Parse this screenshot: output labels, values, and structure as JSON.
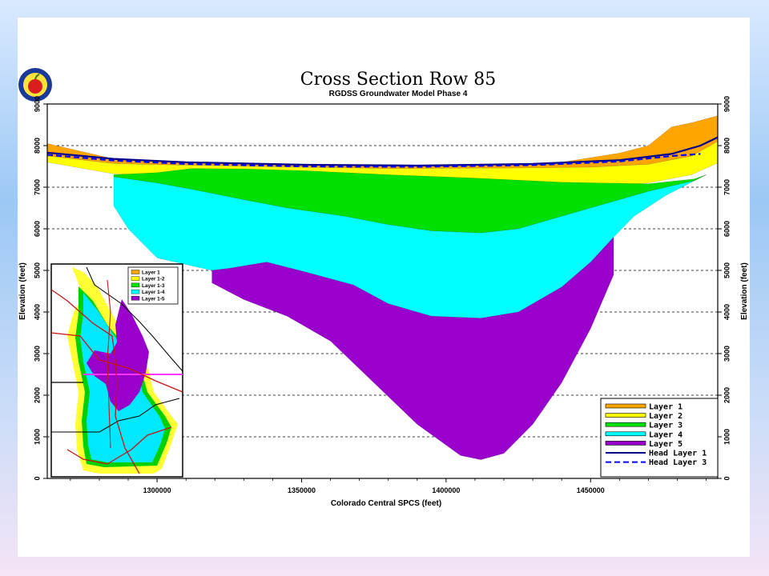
{
  "chart_data": {
    "type": "area",
    "title": "Cross Section Row 85",
    "subtitle": "RGDSS Groundwater Model Phase 4",
    "xlabel": "Colorado Central SPCS (feet)",
    "ylabel_left": "Elevation (feet)",
    "ylabel_right": "Elevation (feet)",
    "xlim": [
      1262000,
      1494000
    ],
    "ylim": [
      0,
      9000
    ],
    "x_ticks": [
      1300000,
      1350000,
      1400000,
      1450000
    ],
    "y_ticks": [
      0,
      1000,
      2000,
      3000,
      4000,
      5000,
      6000,
      7000,
      8000,
      9000
    ],
    "grid": "horizontal dashed",
    "legend_position": "bottom-right",
    "series": [
      {
        "name": "Layer 1",
        "color": "#ffa500",
        "top": [
          [
            1262000,
            8050
          ],
          [
            1285000,
            7680
          ],
          [
            1310000,
            7600
          ],
          [
            1350000,
            7520
          ],
          [
            1380000,
            7500
          ],
          [
            1410000,
            7520
          ],
          [
            1440000,
            7600
          ],
          [
            1460000,
            7820
          ],
          [
            1470000,
            8000
          ],
          [
            1478000,
            8450
          ],
          [
            1485000,
            8550
          ],
          [
            1494000,
            8720
          ]
        ],
        "bottom": [
          [
            1494000,
            8100
          ],
          [
            1485000,
            7750
          ],
          [
            1470000,
            7550
          ],
          [
            1450000,
            7480
          ],
          [
            1420000,
            7460
          ],
          [
            1380000,
            7450
          ],
          [
            1350000,
            7480
          ],
          [
            1320000,
            7520
          ],
          [
            1300000,
            7540
          ],
          [
            1285000,
            7570
          ],
          [
            1262000,
            7750
          ]
        ]
      },
      {
        "name": "Layer 2",
        "color": "#ffff00",
        "top": [
          [
            1262000,
            7750
          ],
          [
            1285000,
            7570
          ],
          [
            1300000,
            7540
          ],
          [
            1320000,
            7520
          ],
          [
            1350000,
            7480
          ],
          [
            1380000,
            7450
          ],
          [
            1420000,
            7460
          ],
          [
            1450000,
            7480
          ],
          [
            1470000,
            7550
          ],
          [
            1485000,
            7750
          ],
          [
            1494000,
            8100
          ]
        ],
        "bottom": [
          [
            1494000,
            7580
          ],
          [
            1485000,
            7300
          ],
          [
            1470000,
            7100
          ],
          [
            1450000,
            7020
          ],
          [
            1420000,
            7000
          ],
          [
            1390000,
            7100
          ],
          [
            1360000,
            7200
          ],
          [
            1330000,
            7250
          ],
          [
            1300000,
            7300
          ],
          [
            1285000,
            7320
          ],
          [
            1262000,
            7600
          ]
        ]
      },
      {
        "name": "Layer 3",
        "color": "#00e000",
        "top": [
          [
            1285000,
            7300
          ],
          [
            1300000,
            7350
          ],
          [
            1312000,
            7450
          ],
          [
            1330000,
            7440
          ],
          [
            1350000,
            7400
          ],
          [
            1380000,
            7300
          ],
          [
            1410000,
            7220
          ],
          [
            1440000,
            7120
          ],
          [
            1470000,
            7080
          ],
          [
            1486000,
            7200
          ],
          [
            1490000,
            7300
          ]
        ],
        "bottom": [
          [
            1490000,
            7300
          ],
          [
            1486000,
            7160
          ],
          [
            1470000,
            6900
          ],
          [
            1455000,
            6600
          ],
          [
            1440000,
            6300
          ],
          [
            1425000,
            6000
          ],
          [
            1412000,
            5900
          ],
          [
            1395000,
            5950
          ],
          [
            1380000,
            6100
          ],
          [
            1365000,
            6300
          ],
          [
            1345000,
            6500
          ],
          [
            1330000,
            6700
          ],
          [
            1312000,
            6950
          ],
          [
            1300000,
            7100
          ],
          [
            1285000,
            7250
          ]
        ]
      },
      {
        "name": "Layer 4",
        "color": "#00ffff",
        "top": [
          [
            1285000,
            7250
          ],
          [
            1300000,
            7100
          ],
          [
            1312000,
            6950
          ],
          [
            1330000,
            6700
          ],
          [
            1345000,
            6500
          ],
          [
            1365000,
            6300
          ],
          [
            1380000,
            6100
          ],
          [
            1395000,
            5950
          ],
          [
            1412000,
            5900
          ],
          [
            1425000,
            6000
          ],
          [
            1440000,
            6300
          ],
          [
            1455000,
            6600
          ],
          [
            1470000,
            6900
          ],
          [
            1486000,
            7160
          ],
          [
            1490000,
            7300
          ]
        ],
        "bottom": [
          [
            1490000,
            7300
          ],
          [
            1476000,
            6800
          ],
          [
            1465000,
            6300
          ],
          [
            1458000,
            5800
          ],
          [
            1450000,
            5200
          ],
          [
            1440000,
            4600
          ],
          [
            1425000,
            4000
          ],
          [
            1412000,
            3850
          ],
          [
            1395000,
            3900
          ],
          [
            1380000,
            4000
          ],
          [
            1368000,
            4250
          ],
          [
            1352000,
            4450
          ],
          [
            1338000,
            5200
          ],
          [
            1325000,
            5050
          ],
          [
            1319000,
            5000
          ],
          [
            1300000,
            5300
          ],
          [
            1290000,
            6000
          ],
          [
            1285000,
            6550
          ]
        ]
      },
      {
        "name": "Layer 5",
        "color": "#9900cc",
        "top": [
          [
            1319000,
            5000
          ],
          [
            1325000,
            5050
          ],
          [
            1338000,
            5200
          ],
          [
            1352000,
            4950
          ],
          [
            1368000,
            4650
          ],
          [
            1380000,
            4200
          ],
          [
            1395000,
            3900
          ],
          [
            1412000,
            3850
          ],
          [
            1425000,
            4000
          ],
          [
            1440000,
            4600
          ],
          [
            1450000,
            5200
          ],
          [
            1458000,
            5800
          ]
        ],
        "bottom": [
          [
            1458000,
            5800
          ],
          [
            1458000,
            4900
          ],
          [
            1450000,
            3600
          ],
          [
            1440000,
            2300
          ],
          [
            1430000,
            1300
          ],
          [
            1420000,
            600
          ],
          [
            1412000,
            450
          ],
          [
            1405000,
            550
          ],
          [
            1390000,
            1300
          ],
          [
            1375000,
            2300
          ],
          [
            1360000,
            3300
          ],
          [
            1345000,
            3900
          ],
          [
            1330000,
            4300
          ],
          [
            1319000,
            4700
          ]
        ]
      }
    ],
    "head_series": [
      {
        "name": "Head Layer 1",
        "style": "solid",
        "color": "#00008b",
        "points": [
          [
            1262000,
            7830
          ],
          [
            1285000,
            7680
          ],
          [
            1310000,
            7600
          ],
          [
            1350000,
            7540
          ],
          [
            1390000,
            7520
          ],
          [
            1430000,
            7560
          ],
          [
            1460000,
            7650
          ],
          [
            1478000,
            7800
          ],
          [
            1488000,
            8000
          ],
          [
            1494000,
            8200
          ]
        ]
      },
      {
        "name": "Head Layer 3",
        "style": "dashed",
        "color": "#0000ff",
        "points": [
          [
            1262000,
            7780
          ],
          [
            1285000,
            7640
          ],
          [
            1310000,
            7560
          ],
          [
            1350000,
            7500
          ],
          [
            1390000,
            7490
          ],
          [
            1430000,
            7530
          ],
          [
            1460000,
            7620
          ],
          [
            1478000,
            7750
          ],
          [
            1488000,
            7800
          ]
        ]
      }
    ],
    "legend": [
      "Layer 1",
      "Layer 2",
      "Layer 3",
      "Layer 4",
      "Layer 5",
      "Head Layer 1",
      "Head Layer 3"
    ],
    "inset_map": {
      "legend": [
        "Layer 1",
        "Layer 1-2",
        "Layer 1-3",
        "Layer 1-4",
        "Layer 1-5"
      ],
      "legend_colors": [
        "#ffa500",
        "#ffff00",
        "#00e000",
        "#00ffff",
        "#9900cc"
      ]
    }
  }
}
